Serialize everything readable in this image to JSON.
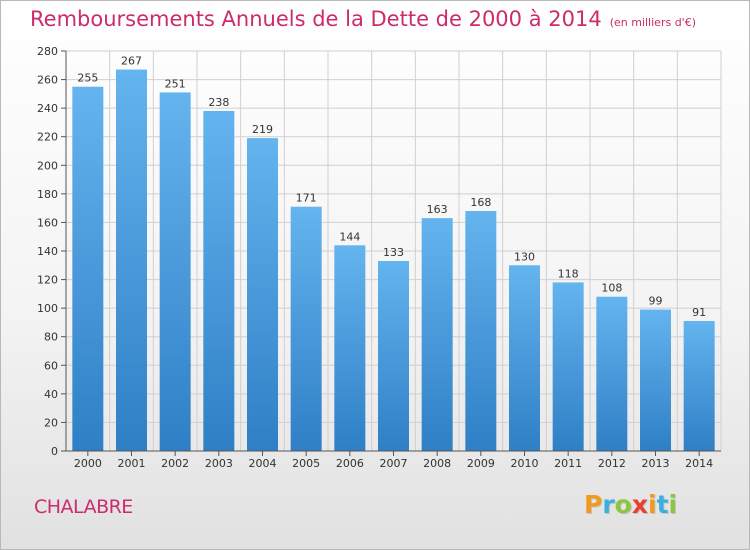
{
  "chart_data": {
    "type": "bar",
    "title": "Remboursements Annuels de la Dette de 2000 à 2014",
    "unit": "(en milliers d'€)",
    "categories": [
      "2000",
      "2001",
      "2002",
      "2003",
      "2004",
      "2005",
      "2006",
      "2007",
      "2008",
      "2009",
      "2010",
      "2011",
      "2012",
      "2013",
      "2014"
    ],
    "values": [
      255,
      267,
      251,
      238,
      219,
      171,
      144,
      133,
      163,
      168,
      130,
      118,
      108,
      99,
      91
    ],
    "ylim": [
      0,
      280
    ],
    "ytick_step": 20,
    "xlabel": "",
    "ylabel": "",
    "grid": true,
    "colors": {
      "bar_light": "#64b4ef",
      "bar_dark": "#2f7fc6",
      "title": "#cc2c6a",
      "grid": "#d0d0d0"
    }
  },
  "commune": "CHALABRE",
  "logo": {
    "text": "Proxiti",
    "letters": [
      {
        "ch": "P",
        "color": "#f29a1f"
      },
      {
        "ch": "r",
        "color": "#3bb0e0"
      },
      {
        "ch": "o",
        "color": "#8cc63f"
      },
      {
        "ch": "x",
        "color": "#e8412c"
      },
      {
        "ch": "i",
        "color": "#f29a1f"
      },
      {
        "ch": "t",
        "color": "#3bb0e0"
      },
      {
        "ch": "i",
        "color": "#8cc63f"
      }
    ]
  }
}
